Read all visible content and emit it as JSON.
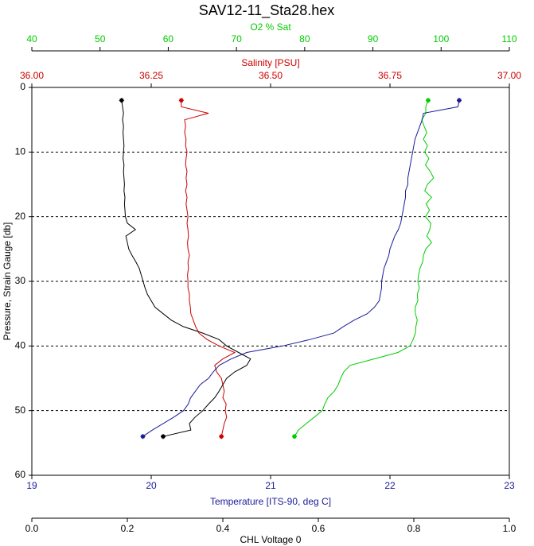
{
  "chart_data": {
    "type": "profile",
    "title": "SAV12-11_Sta28.hex",
    "ylabel": "Pressure, Strain Gauge [db]",
    "ylim": [
      0,
      60
    ],
    "yticks": [
      0,
      10,
      20,
      30,
      40,
      50,
      60
    ],
    "grid": true,
    "y": [
      2,
      3,
      4,
      5,
      6,
      7,
      8,
      9,
      10,
      11,
      12,
      13,
      14,
      15,
      16,
      17,
      18,
      19,
      20,
      21,
      22,
      23,
      24,
      25,
      26,
      27,
      28,
      29,
      30,
      31,
      32,
      33,
      34,
      35,
      36,
      37,
      38,
      39,
      40,
      41,
      42,
      43,
      44,
      45,
      46,
      47,
      48,
      49,
      50,
      51,
      52,
      53,
      54
    ],
    "x_axes": [
      {
        "label": "O2 % Sat",
        "color": "#00cc00",
        "xlim": [
          40,
          110
        ],
        "xticks": [
          40,
          50,
          60,
          70,
          80,
          90,
          100,
          110
        ],
        "values": [
          98.1,
          97.75,
          97.75,
          97.17,
          97.5,
          97.9,
          97.4,
          98.0,
          97.6,
          98.2,
          97.7,
          98.4,
          98.9,
          98.0,
          97.6,
          98.6,
          97.8,
          98.3,
          97.7,
          98.5,
          98.33,
          97.9,
          98.6,
          97.75,
          97.4,
          97.3,
          96.9,
          96.7,
          96.58,
          96.8,
          96.5,
          96.6,
          96.2,
          96.23,
          96.5,
          96.3,
          96.23,
          95.9,
          95.42,
          93.67,
          90.17,
          86.67,
          85.73,
          85.27,
          84.92,
          84.33,
          83.4,
          82.93,
          82.58,
          81.42,
          80.25,
          79.08,
          78.5
        ]
      },
      {
        "label": "Salinity [PSU]",
        "color": "#cc0000",
        "xlim": [
          36,
          37
        ],
        "xticks": [
          {
            "value": 36,
            "label": "36.00"
          },
          36.25,
          {
            "value": 36.5,
            "label": "36.50"
          },
          36.75,
          {
            "value": 37,
            "label": "37.00"
          }
        ],
        "values": [
          36.313,
          36.313,
          36.37,
          36.32,
          36.322,
          36.32,
          36.323,
          36.322,
          36.325,
          36.323,
          36.322,
          36.325,
          36.323,
          36.325,
          36.322,
          36.325,
          36.323,
          36.325,
          36.327,
          36.325,
          36.327,
          36.328,
          36.326,
          36.327,
          36.33,
          36.327,
          36.328,
          36.326,
          36.327,
          36.327,
          36.33,
          36.33,
          36.332,
          36.333,
          36.338,
          36.343,
          36.35,
          36.367,
          36.392,
          36.425,
          36.4,
          36.383,
          36.387,
          36.397,
          36.4,
          36.403,
          36.4,
          36.407,
          36.405,
          36.408,
          36.403,
          36.4,
          36.397
        ]
      },
      {
        "label": "Temperature [ITS-90, deg C]",
        "color": "#1a1a9a",
        "xlim": [
          19,
          23
        ],
        "xticks": [
          19,
          20,
          21,
          22,
          23
        ],
        "values": [
          22.58,
          22.57,
          22.28,
          22.27,
          22.25,
          22.23,
          22.21,
          22.2,
          22.19,
          22.18,
          22.17,
          22.16,
          22.15,
          22.15,
          22.13,
          22.13,
          22.12,
          22.11,
          22.1,
          22.09,
          22.07,
          22.04,
          22.02,
          22.0,
          21.99,
          21.97,
          21.95,
          21.94,
          21.93,
          21.93,
          21.92,
          21.91,
          21.87,
          21.81,
          21.7,
          21.61,
          21.53,
          21.33,
          21.1,
          20.8,
          20.67,
          20.57,
          20.52,
          20.48,
          20.41,
          20.37,
          20.33,
          20.31,
          20.27,
          20.19,
          20.1,
          20.01,
          19.93
        ]
      },
      {
        "label": "CHL Voltage 0",
        "color": "#000000",
        "xlim": [
          0,
          1
        ],
        "xticks": [
          {
            "value": 0,
            "label": "0.0"
          },
          0.2,
          0.4,
          0.6,
          0.8,
          {
            "value": 1,
            "label": "1.0"
          }
        ],
        "values": [
          0.188,
          0.19,
          0.192,
          0.19,
          0.192,
          0.191,
          0.192,
          0.193,
          0.192,
          0.191,
          0.193,
          0.192,
          0.193,
          0.194,
          0.193,
          0.195,
          0.194,
          0.195,
          0.196,
          0.2,
          0.217,
          0.197,
          0.2,
          0.203,
          0.21,
          0.218,
          0.225,
          0.229,
          0.233,
          0.237,
          0.242,
          0.25,
          0.258,
          0.275,
          0.292,
          0.317,
          0.358,
          0.392,
          0.408,
          0.433,
          0.458,
          0.45,
          0.425,
          0.408,
          0.4,
          0.392,
          0.383,
          0.37,
          0.358,
          0.342,
          0.33,
          0.333,
          0.275
        ]
      }
    ]
  }
}
